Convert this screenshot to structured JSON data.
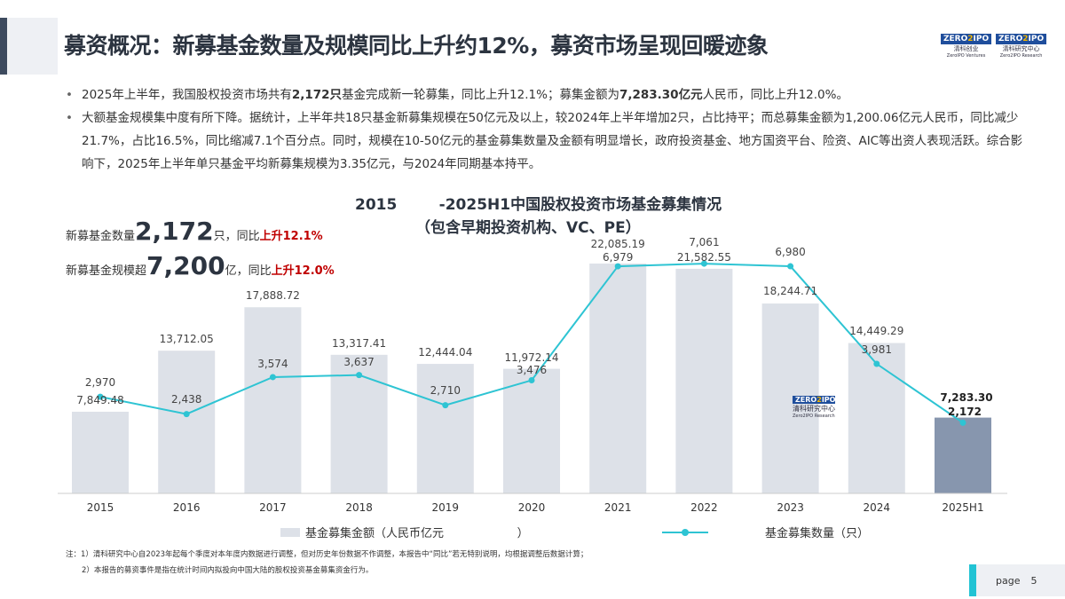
{
  "header": {
    "title": "募资概况：新募基金数量及规模同比上升约12%，募资市场呈现回暖迹象",
    "logos": [
      {
        "mark": "ZERO2IPO",
        "cn": "清科创业",
        "en": "ZeroIPO Ventures"
      },
      {
        "mark": "ZERO2IPO",
        "cn": "清科研究中心",
        "en": "Zero2IPO Research"
      }
    ]
  },
  "bullets": [
    {
      "parts": [
        "2025年上半年，我国股权投资市场共有",
        "2,172只",
        "基金完成新一轮募集，同比上升12.1%；募集金额为",
        "7,283.30亿元",
        "人民币，同比上升12.0%。"
      ]
    },
    {
      "text": "大额基金规模集中度有所下降。据统计，上半年共18只基金新募集规模在50亿元及以上，较2024年上半年增加2只，占比持平；而总募集金额为1,200.06亿元人民币，同比减少21.7%，占比16.5%，同比缩减7.1个百分点。同时，规模在10-50亿元的基金募集数量及金额有明显增长，政府投资基金、地方国资平台、险资、AIC等出资人表现活跃。综合影响下，2025年上半年单只基金平均新募集规模为3.35亿元，与2024年同期基本持平。"
    }
  ],
  "kpis": [
    {
      "pre": "新募基金数量",
      "big": "2,172",
      "unit": "只，同比",
      "red": "上升12.1%"
    },
    {
      "pre": "新募基金规模超",
      "big": "7,200",
      "unit": "亿，同比",
      "red": "上升12.0%"
    }
  ],
  "watermark": {
    "mark": "ZERO2IPO",
    "cn": "清科研究中心",
    "en": "Zero2IPO Research"
  },
  "chart_data": {
    "type": "bar+line",
    "title": "2015        -2025H1中国股权投资市场基金募集情况",
    "subtitle": "（包含早期投资机构、VC、PE）",
    "categories": [
      "2015",
      "2016",
      "2017",
      "2018",
      "2019",
      "2020",
      "2021",
      "2022",
      "2023",
      "2024",
      "2025H1"
    ],
    "series": [
      {
        "name": "基金募集金额（人民币亿元                    ）",
        "type": "bar",
        "color": "#dde1e8",
        "highlight_color": "#8796ae",
        "values": [
          7849.48,
          13712.05,
          17888.72,
          13317.41,
          12444.04,
          11972.14,
          22085.19,
          21582.55,
          18244.71,
          14449.29,
          7283.3
        ],
        "labels": [
          "7,849.48",
          "13,712.05",
          "17,888.72",
          "13,317.41",
          "12,444.04",
          "11,972.14",
          "22,085.19",
          "21,582.55",
          "18,244.71",
          "14,449.29",
          "7,283.30"
        ]
      },
      {
        "name": "基金募集数量（只）",
        "type": "line",
        "color": "#2ec4d3",
        "values": [
          2970,
          2438,
          3574,
          3637,
          2710,
          3476,
          6979,
          7061,
          6980,
          3981,
          2172
        ],
        "labels": [
          "2,970",
          "2,438",
          "3,574",
          "3,637",
          "2,710",
          "3,476",
          "6,979",
          "7,061",
          "6,980",
          "3,981",
          "2,172"
        ]
      }
    ],
    "legend": "bottom",
    "grid": false
  },
  "notes": [
    "注：1）清科研究中心自2023年起每个季度对本年度内数据进行调整，但对历史年份数据不作调整，本报告中“同比”若无特别说明，均根据调整后数据计算；",
    "2）本报告的募资事件是指在统计时间内拟投向中国大陆的股权投资基金募集资金行为。"
  ],
  "footer": {
    "page_label": "page",
    "page_number": "5"
  }
}
